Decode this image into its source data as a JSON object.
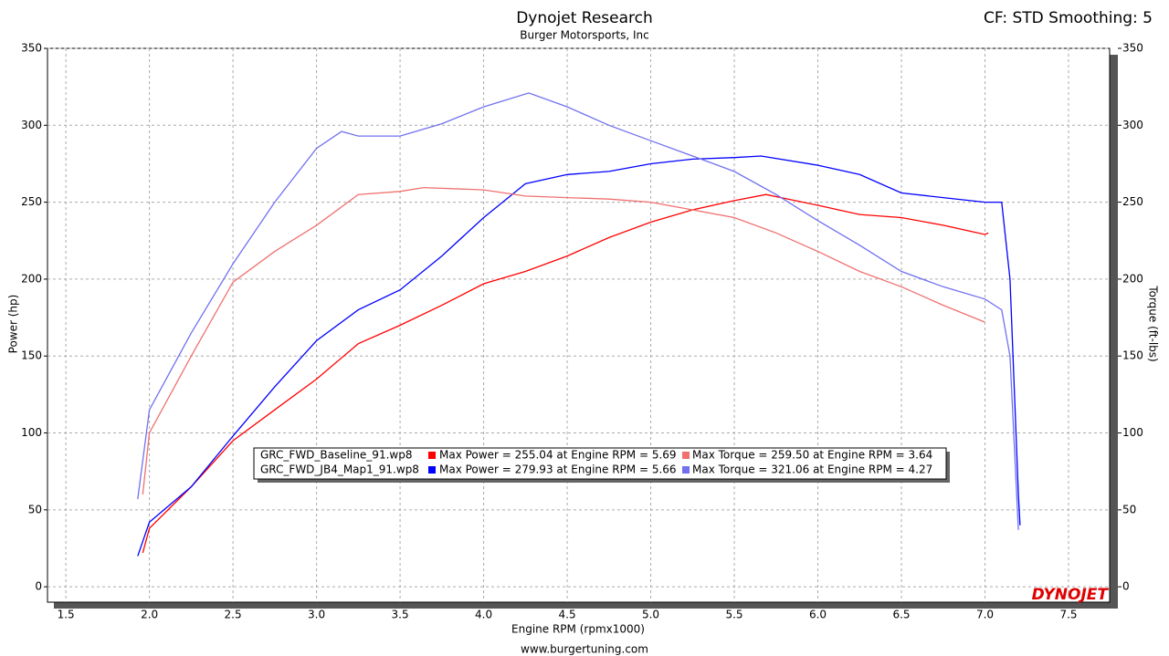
{
  "chart_data": {
    "type": "line",
    "title": "Dynojet Research",
    "subtitle": "Burger Motorsports, Inc",
    "header_right": "CF: STD Smoothing: 5",
    "x_label": "Engine RPM (rpmx1000)",
    "y_label": "Power (hp)",
    "y2_label": "Torque (ft-lbs)",
    "footer": "www.burgertuning.com",
    "logo": "DYNOJET",
    "grid": true,
    "xlim": [
      1.39,
      7.746
    ],
    "xticks": [
      1.5,
      {
        "value": 2,
        "label": "2.0"
      },
      2.5,
      {
        "value": 3,
        "label": "3.0"
      },
      3.5,
      {
        "value": 4,
        "label": "4.0"
      },
      4.5,
      {
        "value": 5,
        "label": "5.0"
      },
      5.5,
      {
        "value": 6,
        "label": "6.0"
      },
      6.5,
      {
        "value": 7,
        "label": "7.0"
      },
      7.5
    ],
    "ylim": [
      -10,
      350
    ],
    "yticks": [
      0,
      50,
      100,
      150,
      200,
      250,
      300,
      350
    ],
    "y2lim": [
      -10,
      350
    ],
    "y2ticks": [
      0,
      50,
      100,
      150,
      200,
      250,
      300,
      350
    ],
    "legend_files": [
      "GRC_FWD_Baseline_91.wp8",
      "GRC_FWD_JB4_Map1_91.wp8"
    ],
    "series": [
      {
        "name": "Max Power = 255.04 at Engine RPM = 5.69",
        "color": "#ff0000",
        "x": [
          1.96,
          2.0,
          2.25,
          2.5,
          2.75,
          3.0,
          3.25,
          3.5,
          3.75,
          4.0,
          4.25,
          4.5,
          4.75,
          5.0,
          5.25,
          5.5,
          5.69,
          6.0,
          6.25,
          6.5,
          6.75,
          7.0,
          7.02
        ],
        "values": [
          22,
          38,
          65,
          95,
          115,
          135,
          158,
          170,
          183,
          197,
          205,
          215,
          227,
          237,
          245,
          251,
          255,
          248,
          242,
          240,
          235,
          229,
          230
        ]
      },
      {
        "name": "Max Power = 279.93 at Engine RPM = 5.66",
        "color": "#0000ff",
        "x": [
          1.93,
          2.0,
          2.25,
          2.5,
          2.75,
          3.0,
          3.25,
          3.5,
          3.75,
          4.0,
          4.25,
          4.5,
          4.75,
          5.0,
          5.25,
          5.5,
          5.66,
          6.0,
          6.25,
          6.5,
          6.75,
          7.0,
          7.1,
          7.15,
          7.2,
          7.21
        ],
        "values": [
          20,
          42,
          65,
          98,
          130,
          160,
          180,
          193,
          215,
          240,
          262,
          268,
          270,
          275,
          278,
          279,
          280,
          274,
          268,
          256,
          253,
          250,
          250,
          200,
          60,
          40
        ]
      },
      {
        "name": "Max Torque = 259.50 at Engine RPM = 3.64",
        "color": "#f07070",
        "axis": "y2",
        "x": [
          1.96,
          2.0,
          2.25,
          2.5,
          2.75,
          3.0,
          3.25,
          3.5,
          3.64,
          4.0,
          4.25,
          4.5,
          4.75,
          5.0,
          5.25,
          5.5,
          5.75,
          6.0,
          6.25,
          6.5,
          6.75,
          7.0
        ],
        "values": [
          60,
          100,
          150,
          198,
          218,
          235,
          255,
          257,
          259.5,
          258,
          254,
          253,
          252,
          250,
          245,
          240,
          230,
          218,
          205,
          195,
          183,
          172
        ]
      },
      {
        "name": "Max Torque = 321.06 at Engine RPM = 4.27",
        "color": "#7070f0",
        "axis": "y2",
        "x": [
          1.93,
          2.0,
          2.25,
          2.5,
          2.75,
          3.0,
          3.15,
          3.25,
          3.5,
          3.75,
          4.0,
          4.27,
          4.5,
          4.75,
          5.0,
          5.25,
          5.5,
          5.75,
          6.0,
          6.25,
          6.5,
          6.75,
          7.0,
          7.1,
          7.15,
          7.2
        ],
        "values": [
          57,
          115,
          165,
          210,
          250,
          285,
          296,
          293,
          293,
          301,
          312,
          321,
          312,
          300,
          290,
          280,
          270,
          255,
          238,
          222,
          205,
          195,
          187,
          180,
          150,
          37
        ]
      }
    ]
  }
}
